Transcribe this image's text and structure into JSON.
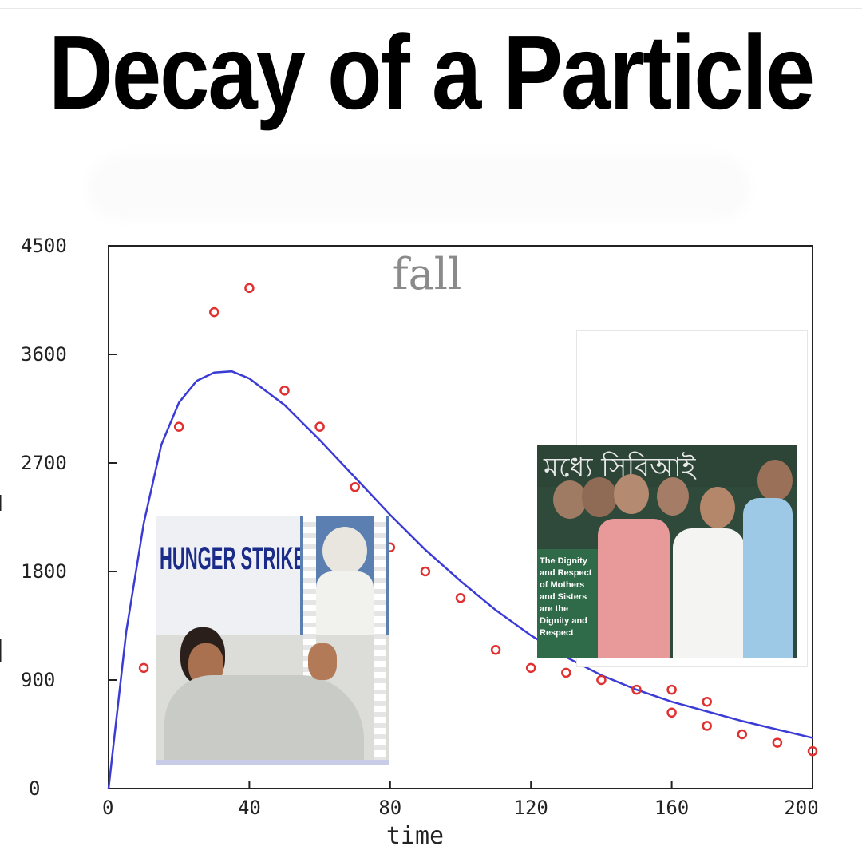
{
  "title": "Decay of a Particle",
  "chart_data": {
    "type": "scatter",
    "xlabel": "time",
    "ylabel": "",
    "xlim": [
      0,
      200
    ],
    "ylim": [
      0,
      4500
    ],
    "x_ticks": [
      "0",
      "40",
      "80",
      "120",
      "160",
      "200"
    ],
    "y_ticks": [
      "0",
      "900",
      "1800",
      "2700",
      "3600",
      "4500"
    ],
    "annotation": "fall",
    "grid": false,
    "points": [
      {
        "x": 10,
        "y": 1000
      },
      {
        "x": 20,
        "y": 3000
      },
      {
        "x": 30,
        "y": 3950
      },
      {
        "x": 40,
        "y": 4150
      },
      {
        "x": 50,
        "y": 3300
      },
      {
        "x": 60,
        "y": 3000
      },
      {
        "x": 70,
        "y": 2500
      },
      {
        "x": 80,
        "y": 2000
      },
      {
        "x": 90,
        "y": 1800
      },
      {
        "x": 100,
        "y": 1580
      },
      {
        "x": 110,
        "y": 1150
      },
      {
        "x": 120,
        "y": 1000
      },
      {
        "x": 130,
        "y": 960
      },
      {
        "x": 140,
        "y": 900
      },
      {
        "x": 150,
        "y": 820
      },
      {
        "x": 160,
        "y": 820
      },
      {
        "x": 160,
        "y": 630
      },
      {
        "x": 170,
        "y": 720
      },
      {
        "x": 170,
        "y": 520
      },
      {
        "x": 180,
        "y": 450
      },
      {
        "x": 190,
        "y": 380
      },
      {
        "x": 200,
        "y": 310
      }
    ],
    "fit_curve": {
      "x": [
        0,
        5,
        10,
        15,
        20,
        25,
        30,
        35,
        40,
        50,
        60,
        70,
        80,
        90,
        100,
        110,
        120,
        130,
        140,
        150,
        160,
        170,
        180,
        190,
        200
      ],
      "y": [
        0,
        1300,
        2200,
        2850,
        3200,
        3380,
        3450,
        3460,
        3400,
        3180,
        2890,
        2580,
        2270,
        1980,
        1720,
        1480,
        1270,
        1090,
        940,
        820,
        720,
        640,
        560,
        490,
        420
      ]
    },
    "colors": {
      "points": "#e03030",
      "curve": "#3b3bd6",
      "axes": "#222222"
    }
  },
  "photo_left": {
    "banner_text": "HUNGER STRIKE"
  },
  "photo_right": {
    "wall_text": "মধ্যে সিবিআই",
    "placard_lines": [
      "The Dignity",
      "and Respect",
      "of Mothers",
      "and Sisters",
      "are the",
      "Dignity and",
      "Respect"
    ]
  }
}
